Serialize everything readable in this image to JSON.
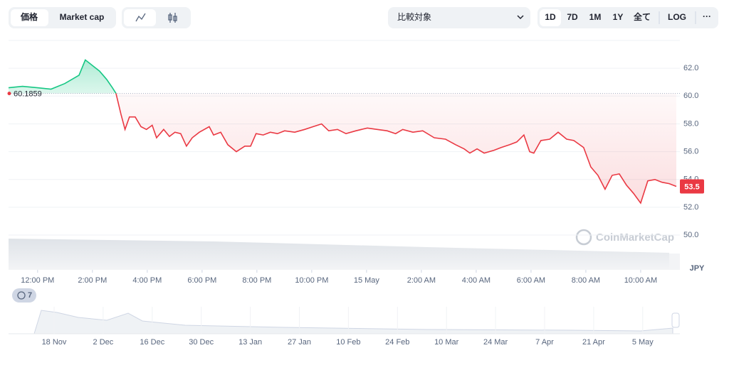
{
  "toolbar": {
    "tabs": [
      "価格",
      "Market cap"
    ],
    "compare": "比較対象",
    "ranges": [
      "1D",
      "7D",
      "1M",
      "1Y",
      "全て"
    ],
    "log": "LOG",
    "more": "···"
  },
  "chart_data": {
    "type": "line",
    "x": [
      10.94,
      11.45,
      12,
      12.49,
      12.99,
      13.51,
      13.74,
      14,
      14.26,
      14.52,
      14.73,
      14.86,
      15.04,
      15.19,
      15.35,
      15.56,
      15.77,
      15.97,
      16.18,
      16.34,
      16.6,
      16.81,
      17.01,
      17.22,
      17.43,
      17.64,
      17.9,
      18.26,
      18.42,
      18.68,
      18.94,
      19.25,
      19.56,
      19.77,
      19.97,
      20.23,
      20.49,
      20.75,
      21.01,
      21.38,
      21.74,
      22.05,
      22.36,
      22.62,
      22.94,
      23.25,
      23.61,
      24.03,
      24.39,
      24.75,
      25.06,
      25.32,
      25.69,
      26.05,
      26.47,
      26.88,
      27.25,
      27.56,
      27.77,
      28.03,
      28.29,
      28.65,
      28.91,
      29.22,
      29.48,
      29.74,
      29.95,
      30.1,
      30.36,
      30.68,
      30.99,
      31.3,
      31.56,
      31.92,
      32.18,
      32.44,
      32.7,
      32.96,
      33.22,
      33.48,
      33.74,
      34,
      34.26,
      34.52,
      34.78,
      35.04,
      35.3
    ],
    "values": [
      60.6,
      60.7,
      60.6,
      60.5,
      60.9,
      61.5,
      62.6,
      62.2,
      61.8,
      61.2,
      60.6,
      60.2,
      58.7,
      57.6,
      58.5,
      58.5,
      57.8,
      57.6,
      57.9,
      57.0,
      57.6,
      57.1,
      57.4,
      57.3,
      56.4,
      57.0,
      57.4,
      57.8,
      57.2,
      57.4,
      56.5,
      56.0,
      56.4,
      56.4,
      57.3,
      57.2,
      57.4,
      57.3,
      57.5,
      57.4,
      57.6,
      57.8,
      58.0,
      57.5,
      57.6,
      57.3,
      57.5,
      57.7,
      57.6,
      57.5,
      57.3,
      57.6,
      57.4,
      57.5,
      57.0,
      56.9,
      56.5,
      56.2,
      55.9,
      56.2,
      55.9,
      56.1,
      56.3,
      56.5,
      56.7,
      57.2,
      56.0,
      55.9,
      56.8,
      56.9,
      57.4,
      56.9,
      56.8,
      56.3,
      54.9,
      54.3,
      53.3,
      54.3,
      54.4,
      53.6,
      53.0,
      52.3,
      53.9,
      54.0,
      53.8,
      53.7,
      53.5
    ],
    "color_up": "#16c784",
    "color_down": "#ea3943",
    "reference": 60.1859,
    "last_value": 53.5,
    "currency": "JPY",
    "watermark": "CoinMarketCap",
    "xlim": [
      10.94,
      35.43
    ],
    "xticks": [
      {
        "value": 12,
        "label": "12:00 PM"
      },
      {
        "value": 14,
        "label": "2:00 PM"
      },
      {
        "value": 16,
        "label": "4:00 PM"
      },
      {
        "value": 18,
        "label": "6:00 PM"
      },
      {
        "value": 20,
        "label": "8:00 PM"
      },
      {
        "value": 22,
        "label": "10:00 PM"
      },
      {
        "value": 24,
        "label": "15 May"
      },
      {
        "value": 26,
        "label": "2:00 AM"
      },
      {
        "value": 28,
        "label": "4:00 AM"
      },
      {
        "value": 30,
        "label": "6:00 AM"
      },
      {
        "value": 32,
        "label": "8:00 AM"
      },
      {
        "value": 34,
        "label": "10:00 AM"
      }
    ],
    "ylim": [
      47.5,
      64
    ],
    "yticks": [
      {
        "value": 50,
        "label": "50.0"
      },
      {
        "value": 52,
        "label": "52.0"
      },
      {
        "value": 54,
        "label": "54.0"
      },
      {
        "value": 56,
        "label": "56.0"
      },
      {
        "value": 58,
        "label": "58.0"
      },
      {
        "value": 60,
        "label": "60.0"
      },
      {
        "value": 62,
        "label": "62.0"
      }
    ],
    "grid": true
  },
  "history_badge": 7,
  "navigator": {
    "labels": [
      "18 Nov",
      "2 Dec",
      "16 Dec",
      "30 Dec",
      "13 Jan",
      "27 Jan",
      "10 Feb",
      "24 Feb",
      "10 Mar",
      "24 Mar",
      "7 Apr",
      "21 Apr",
      "5 May"
    ]
  }
}
